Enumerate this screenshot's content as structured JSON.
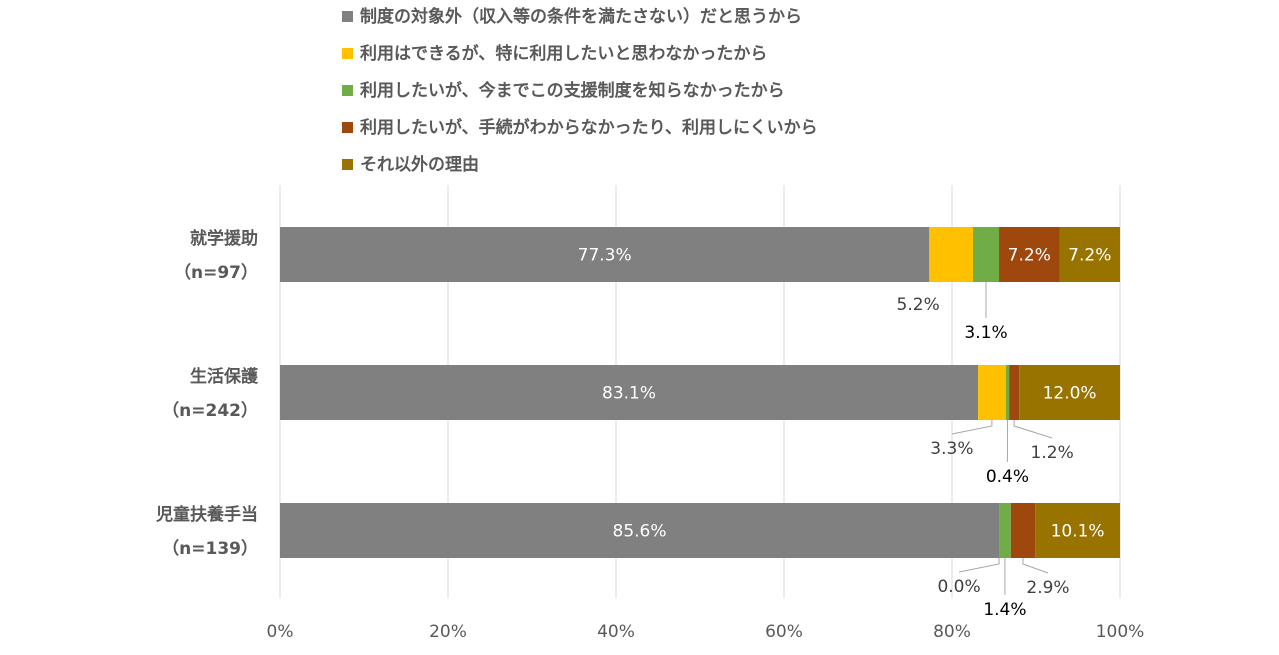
{
  "chart_data": {
    "type": "bar",
    "orientation": "horizontal",
    "stacked": true,
    "xlim": [
      0,
      100
    ],
    "x_ticks": [
      "0%",
      "20%",
      "40%",
      "60%",
      "80%",
      "100%"
    ],
    "grid": true,
    "legend_position": "top",
    "categories": [
      {
        "name": "就学援助",
        "n": "（n=97）"
      },
      {
        "name": "生活保護",
        "n": "（n=242）"
      },
      {
        "name": "児童扶養手当",
        "n": "（n=139）"
      }
    ],
    "series": [
      {
        "name": "制度の対象外（収入等の条件を満たさない）だと思うから",
        "color": "#808080",
        "values": [
          77.3,
          83.1,
          85.6
        ],
        "labels": [
          "77.3%",
          "83.1%",
          "85.6%"
        ]
      },
      {
        "name": "利用はできるが、特に利用したいと思わなかったから",
        "color": "#FFC000",
        "values": [
          5.2,
          3.3,
          0.0
        ],
        "labels": [
          "5.2%",
          "3.3%",
          "0.0%"
        ]
      },
      {
        "name": "利用したいが、今までこの支援制度を知らなかったから",
        "color": "#70AD47",
        "values": [
          3.1,
          0.4,
          1.4
        ],
        "labels": [
          "3.1%",
          "0.4%",
          "1.4%"
        ]
      },
      {
        "name": "利用したいが、手続がわからなかったり、利用しにくいから",
        "color": "#9E480E",
        "values": [
          7.2,
          1.2,
          2.9
        ],
        "labels": [
          "7.2%",
          "1.2%",
          "2.9%"
        ]
      },
      {
        "name": "それ以外の理由",
        "color": "#997300",
        "values": [
          7.2,
          12.0,
          10.1
        ],
        "labels": [
          "7.2%",
          "12.0%",
          "10.1%"
        ]
      }
    ]
  }
}
